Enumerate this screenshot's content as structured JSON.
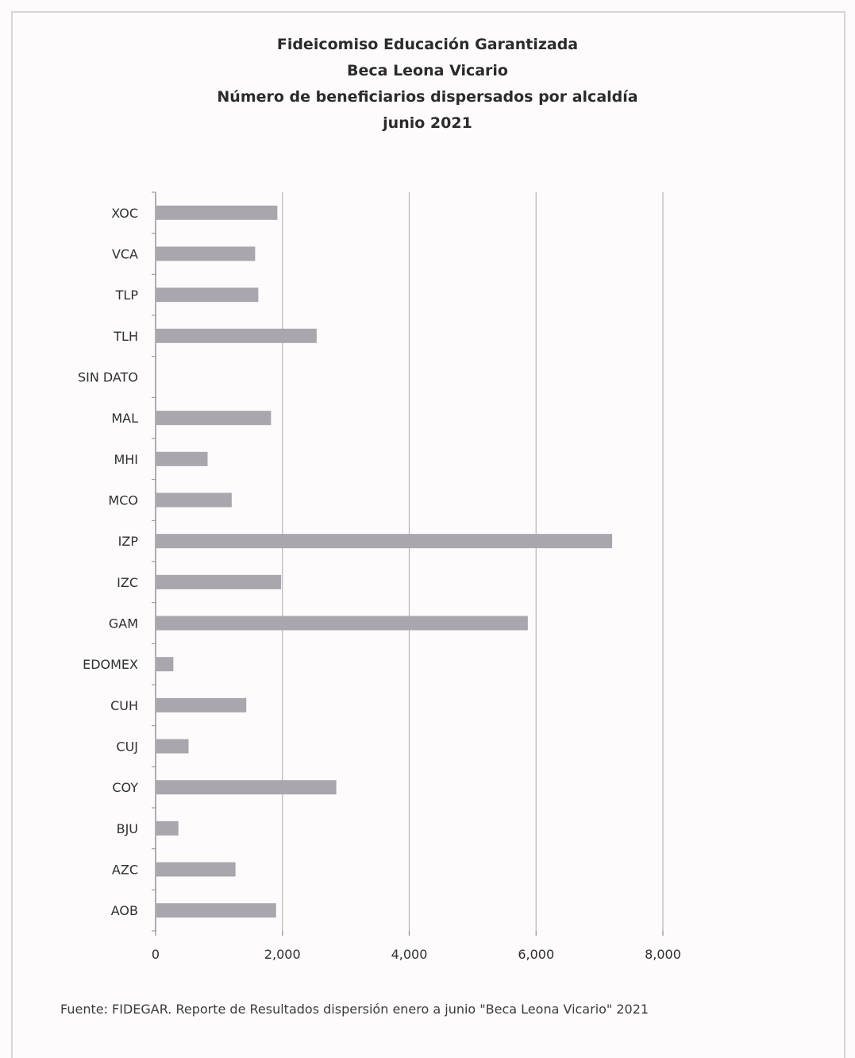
{
  "chart_data": {
    "type": "bar",
    "orientation": "horizontal",
    "title_lines": [
      "Fideicomiso Educación Garantizada",
      "Beca Leona Vicario",
      "Número de beneficiarios dispersados por alcaldía",
      "junio 2021"
    ],
    "categories": [
      "XOC",
      "VCA",
      "TLP",
      "TLH",
      "SIN DATO",
      "MAL",
      "MHI",
      "MCO",
      "IZP",
      "IZC",
      "GAM",
      "EDOMEX",
      "CUH",
      "CUJ",
      "COY",
      "BJU",
      "AZC",
      "AOB"
    ],
    "values": [
      1920,
      1570,
      1620,
      2540,
      0,
      1820,
      820,
      1200,
      7200,
      1980,
      5870,
      280,
      1430,
      520,
      2850,
      360,
      1260,
      1900
    ],
    "xlim": [
      0,
      8000
    ],
    "xticks": [
      0,
      2000,
      4000,
      6000,
      8000
    ],
    "xtick_labels": [
      "0",
      "2,000",
      "4,000",
      "6,000",
      "8,000"
    ],
    "grid": "vertical",
    "bar_color": "#a9a6ad",
    "source": "Fuente: FIDEGAR. Reporte de Resultados dispersión enero a junio \"Beca Leona Vicario\" 2021"
  }
}
